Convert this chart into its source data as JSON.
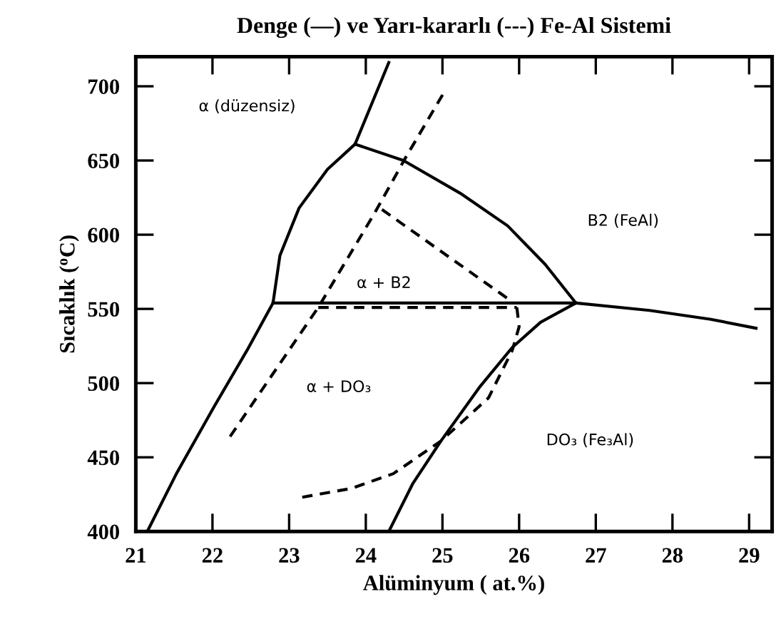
{
  "chart_data": {
    "type": "line",
    "title": "Denge (—) ve Yarı-kararlı (---) Fe-Al Sistemi",
    "xlabel": "Alüminyum ( at.%)",
    "ylabel": "Sıcaklık ($^{o}$C)",
    "xlim": [
      21,
      29.3
    ],
    "ylim": [
      400,
      720
    ],
    "xticks": [
      21,
      22,
      23,
      24,
      25,
      26,
      27,
      28,
      29
    ],
    "yticks": [
      400,
      450,
      500,
      550,
      600,
      650,
      700
    ],
    "grid": false,
    "legend": false,
    "marker": "none",
    "series": [
      {
        "color": "#000000",
        "line_style": "solid",
        "x": [
          21.15,
          21.53,
          22.02,
          22.45,
          22.79,
          22.88,
          23.13,
          23.5,
          23.86,
          24.3
        ],
        "values": [
          400,
          439,
          484,
          522,
          554,
          586,
          618,
          644,
          661,
          716
        ]
      },
      {
        "color": "#000000",
        "line_style": "solid",
        "x": [
          23.86,
          24.49,
          25.23,
          25.85,
          26.34,
          26.74
        ],
        "values": [
          661,
          650,
          628,
          606,
          580,
          554
        ]
      },
      {
        "color": "#000000",
        "line_style": "solid",
        "x": [
          22.79,
          26.74,
          27.7,
          28.5,
          29.09
        ],
        "values": [
          554,
          554,
          549,
          543,
          537
        ]
      },
      {
        "color": "#000000",
        "line_style": "solid",
        "x": [
          26.74,
          26.28,
          25.91,
          25.48,
          24.98,
          24.61,
          24.3
        ],
        "values": [
          554,
          541,
          524,
          497,
          461,
          432,
          400
        ]
      },
      {
        "color": "#000000",
        "line_style": "dashed",
        "x": [
          22.23,
          23.38,
          24.12,
          24.52,
          25.01
        ],
        "values": [
          464,
          551,
          615,
          652,
          695
        ]
      },
      {
        "color": "#000000",
        "line_style": "dashed",
        "x": [
          24.21,
          25.85
        ],
        "values": [
          617,
          557
        ]
      },
      {
        "color": "#000000",
        "line_style": "dashed",
        "x": [
          23.38,
          25.97
        ],
        "values": [
          551,
          551
        ]
      },
      {
        "color": "#000000",
        "line_style": "dashed",
        "x": [
          25.97,
          26.0,
          25.91,
          25.6,
          24.98,
          24.36,
          23.81,
          23.16
        ],
        "values": [
          551,
          538,
          522,
          490,
          461,
          439,
          429,
          423
        ]
      }
    ],
    "annotations": [
      "α (düzensiz)",
      "B2 (FeAl)",
      "α + B2",
      "α + DO₃",
      "DO₃ (Fe₃Al)"
    ]
  }
}
